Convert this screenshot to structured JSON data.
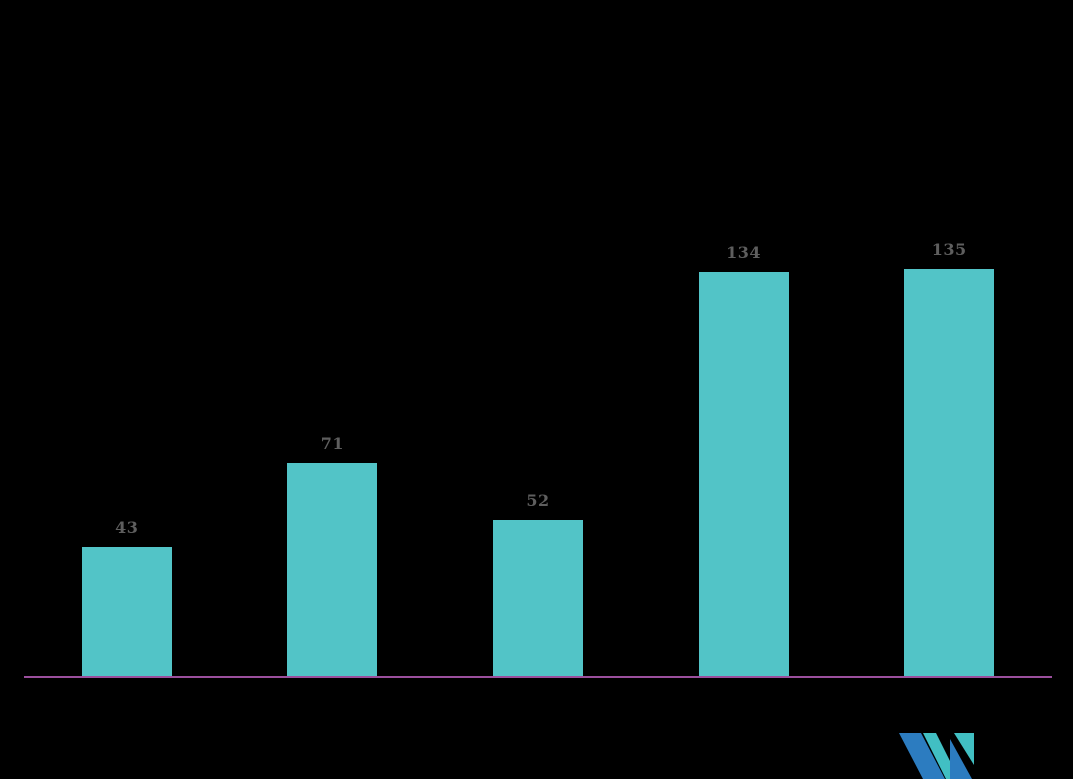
{
  "chart_data": {
    "type": "bar",
    "categories": [
      "",
      "",
      "",
      "",
      ""
    ],
    "values": [
      43,
      71,
      52,
      134,
      135
    ],
    "data_labels": [
      "43",
      "71",
      "52",
      "134",
      "135"
    ],
    "title": "",
    "xlabel": "",
    "ylabel": "",
    "grid": false,
    "legend": false,
    "axis_ticks_visible": false,
    "bar_color": "#52C4C7",
    "data_label_color": "#5E5E5E",
    "axis_line_color": "#9B4F9D",
    "background_color": "#000000"
  },
  "branding": {
    "logo_name": "mordor-intelligence-logo",
    "logo_teal": "#41BFC3",
    "logo_blue": "#2C7CC0"
  }
}
